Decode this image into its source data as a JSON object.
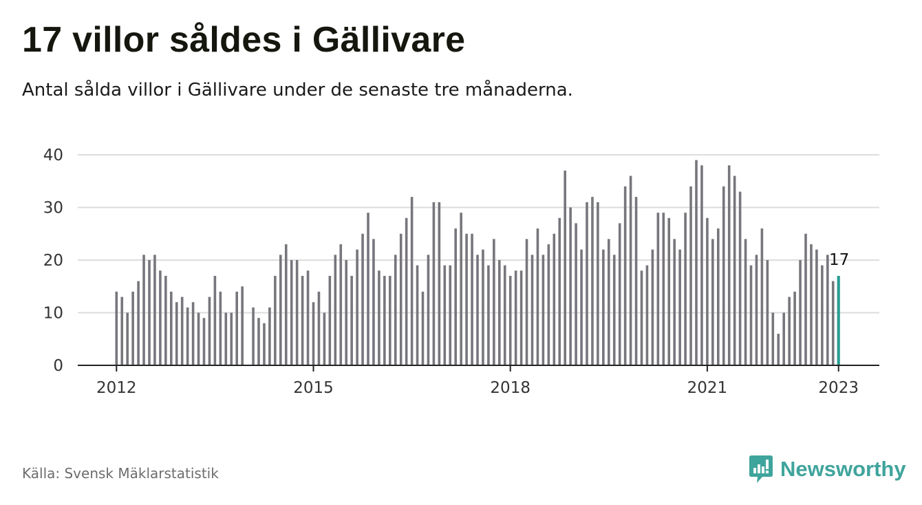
{
  "header": {
    "title": "17 villor såldes i Gällivare",
    "subtitle": "Antal sålda villor i Gällivare under de senaste tre månaderna."
  },
  "footer": {
    "source": "Källa: Svensk Mäklarstatistik",
    "brand": "Newsworthy",
    "brand_icon": "newsworthy-logo-icon"
  },
  "colors": {
    "bar": "#76767c",
    "highlight": "#2a9d93",
    "grid": "#dcdcdc",
    "axis": "#222222",
    "brand": "#3fa49c"
  },
  "chart_data": {
    "type": "bar",
    "title": "17 villor såldes i Gällivare",
    "subtitle": "Antal sålda villor i Gällivare under de senaste tre månaderna.",
    "xlabel": "",
    "ylabel": "",
    "ylim": [
      0,
      40
    ],
    "yticks": [
      0,
      10,
      20,
      30,
      40
    ],
    "grid": true,
    "x_start": "2012-01",
    "xtick_labels": [
      "2012",
      "2015",
      "2018",
      "2021",
      "2023"
    ],
    "xtick_index": [
      0,
      36,
      72,
      108,
      132
    ],
    "highlight_label": "17",
    "values": [
      14,
      13,
      10,
      14,
      16,
      21,
      20,
      21,
      18,
      17,
      14,
      12,
      13,
      11,
      12,
      10,
      9,
      13,
      17,
      14,
      10,
      10,
      14,
      15,
      null,
      11,
      9,
      8,
      11,
      17,
      21,
      23,
      20,
      20,
      17,
      18,
      12,
      14,
      10,
      17,
      21,
      23,
      20,
      17,
      22,
      25,
      29,
      24,
      18,
      17,
      17,
      21,
      25,
      28,
      32,
      19,
      14,
      21,
      31,
      31,
      19,
      19,
      26,
      29,
      25,
      25,
      21,
      22,
      19,
      24,
      20,
      19,
      17,
      18,
      18,
      24,
      21,
      26,
      21,
      23,
      25,
      28,
      37,
      30,
      27,
      22,
      31,
      32,
      31,
      22,
      24,
      21,
      27,
      34,
      36,
      32,
      18,
      19,
      22,
      29,
      29,
      28,
      24,
      22,
      29,
      34,
      39,
      38,
      28,
      24,
      26,
      34,
      38,
      36,
      33,
      24,
      19,
      21,
      26,
      20,
      10,
      6,
      10,
      13,
      14,
      20,
      25,
      23,
      22,
      19,
      21,
      16,
      17
    ]
  }
}
